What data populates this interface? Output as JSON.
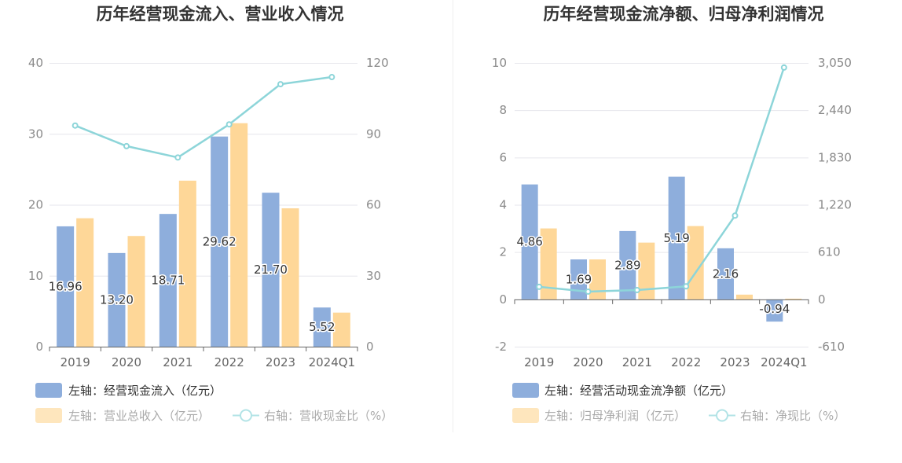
{
  "chart_data": [
    {
      "type": "bar",
      "title": "历年经营现金流入、营业收入情况",
      "categories": [
        "2019",
        "2020",
        "2021",
        "2022",
        "2023",
        "2024Q1"
      ],
      "series": [
        {
          "name": "左轴：经营现金流入（亿元）",
          "axis": "left",
          "type": "bar",
          "color": "#8eaedc",
          "values": [
            16.96,
            13.2,
            18.71,
            29.62,
            21.7,
            5.52
          ],
          "labels": [
            "16.96",
            "13.20",
            "18.71",
            "29.62",
            "21.70",
            "5.52"
          ]
        },
        {
          "name": "左轴：营业总收入（亿元）",
          "axis": "left",
          "type": "bar",
          "color": "#fed798",
          "values": [
            18.1,
            15.6,
            23.4,
            31.5,
            19.5,
            4.8
          ]
        },
        {
          "name": "右轴：营收现金比（%）",
          "axis": "right",
          "type": "line",
          "color": "#8dd5d9",
          "values": [
            93.5,
            84.8,
            80.0,
            94.0,
            111.0,
            114.0
          ]
        }
      ],
      "left_axis": {
        "min": 0,
        "max": 40,
        "ticks": [
          "0",
          "10",
          "20",
          "30",
          "40"
        ]
      },
      "right_axis": {
        "min": 0,
        "max": 120,
        "ticks": [
          "0",
          "30",
          "60",
          "90",
          "120"
        ]
      },
      "legend": "bottom-left"
    },
    {
      "type": "bar",
      "title": "历年经营现金流净额、归母净利润情况",
      "categories": [
        "2019",
        "2020",
        "2021",
        "2022",
        "2023",
        "2024Q1"
      ],
      "series": [
        {
          "name": "左轴：经营活动现金流净额（亿元）",
          "axis": "left",
          "type": "bar",
          "color": "#8eaedc",
          "values": [
            4.86,
            1.69,
            2.89,
            5.19,
            2.16,
            -0.94
          ],
          "labels": [
            "4.86",
            "1.69",
            "2.89",
            "5.19",
            "2.16",
            "-0.94"
          ]
        },
        {
          "name": "左轴：归母净利润（亿元）",
          "axis": "left",
          "type": "bar",
          "color": "#fed798",
          "values": [
            3.0,
            1.69,
            2.4,
            3.1,
            0.2,
            0.03
          ]
        },
        {
          "name": "右轴：净现比（%）",
          "axis": "right",
          "type": "line",
          "color": "#8dd5d9",
          "values": [
            162,
            100,
            120,
            168,
            1080,
            2990
          ]
        }
      ],
      "left_axis": {
        "min": -2,
        "max": 10,
        "ticks": [
          "-2",
          "0",
          "2",
          "4",
          "6",
          "8",
          "10"
        ]
      },
      "right_axis": {
        "min": -610,
        "max": 3050,
        "ticks": [
          "-610",
          "0",
          "610",
          "1,220",
          "1,830",
          "2,440",
          "3,050"
        ]
      },
      "legend": "bottom-left"
    }
  ]
}
